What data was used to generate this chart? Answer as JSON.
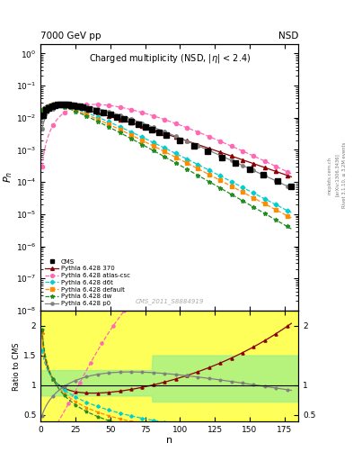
{
  "title_header_left": "7000 GeV pp",
  "title_header_right": "NSD",
  "plot_title": "Charged multiplicity",
  "plot_subtitle": "(NSD, |#eta| < 2.4)",
  "xlabel": "n",
  "ylabel_main": "$P_n$",
  "ylabel_ratio": "Ratio to CMS",
  "watermark": "CMS_2011_S8884919",
  "right_label1": "Rivet 3.1.10, ≥ 3.2M events",
  "right_label2": "[arXiv:1306.3436]",
  "right_label3": "mcplots.cern.ch",
  "xlim": [
    0,
    185
  ],
  "ylim_main_log": [
    -8,
    0.3
  ],
  "ylim_ratio": [
    0.38,
    2.25
  ],
  "series_names": [
    "370",
    "atlas-csc",
    "d6t",
    "default",
    "dw",
    "p0"
  ],
  "series_labels": [
    "Pythia 6.428 370",
    "Pythia 6.428 atlas-csc",
    "Pythia 6.428 d6t",
    "Pythia 6.428 default",
    "Pythia 6.428 dw",
    "Pythia 6.428 p0"
  ],
  "series_colors": [
    "#8b0000",
    "#ff69b4",
    "#00ced1",
    "#ff8c00",
    "#228b22",
    "#808080"
  ],
  "series_ls": [
    "-",
    "--",
    "--",
    "--",
    "--",
    "-"
  ],
  "series_marker": [
    "^",
    "o",
    "D",
    "s",
    "*",
    "o"
  ],
  "series_ms": [
    3.0,
    3.0,
    2.5,
    2.5,
    3.5,
    2.5
  ],
  "cms_color": "#000000",
  "cms_marker": "s",
  "cms_ms": 4,
  "band_yellow_color": "#ffff00",
  "band_green_color": "#90ee90",
  "band_alpha": 0.65
}
